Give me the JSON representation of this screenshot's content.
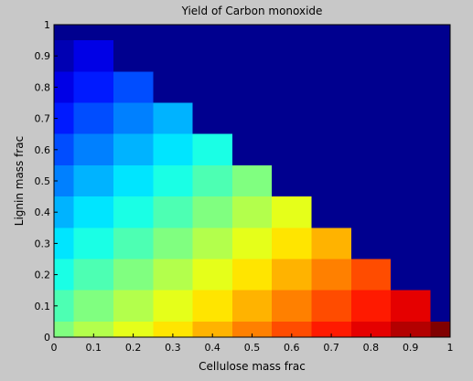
{
  "chart_data": {
    "type": "heatmap",
    "title": "Yield of Carbon monoxide",
    "xlabel": "Cellulose mass frac",
    "ylabel": "Lignin mass frac",
    "xlim": [
      0,
      1
    ],
    "ylim": [
      0,
      1
    ],
    "x_ticks": [
      0,
      0.1,
      0.2,
      0.3,
      0.4,
      0.5,
      0.6,
      0.7,
      0.8,
      0.9,
      1
    ],
    "y_ticks": [
      0,
      0.1,
      0.2,
      0.3,
      0.4,
      0.5,
      0.6,
      0.7,
      0.8,
      0.9,
      1
    ],
    "x_tick_labels": [
      "0",
      "0.1",
      "0.2",
      "0.3",
      "0.4",
      "0.5",
      "0.6",
      "0.7",
      "0.8",
      "0.9",
      "1"
    ],
    "y_tick_labels": [
      "0",
      "0.1",
      "0.2",
      "0.3",
      "0.4",
      "0.5",
      "0.6",
      "0.7",
      "0.8",
      "0.9",
      "1"
    ],
    "colormap": "jet",
    "grid": false,
    "colors": {
      "background": "#c8c8c8",
      "invalid_region": "#00008f"
    },
    "grid_spacing": 0.1,
    "x": [
      0,
      0.1,
      0.2,
      0.3,
      0.4,
      0.5,
      0.6,
      0.7,
      0.8,
      0.9,
      1
    ],
    "y": [
      0,
      0.1,
      0.2,
      0.3,
      0.4,
      0.5,
      0.6,
      0.7,
      0.8,
      0.9,
      1
    ],
    "z": [
      [
        0.5,
        0.55,
        0.6,
        0.65,
        0.7,
        0.75,
        0.8,
        0.85,
        0.9,
        0.95,
        1.0
      ],
      [
        0.45,
        0.5,
        0.55,
        0.6,
        0.65,
        0.7,
        0.75,
        0.8,
        0.85,
        0.9,
        0.0
      ],
      [
        0.4,
        0.45,
        0.5,
        0.55,
        0.6,
        0.65,
        0.7,
        0.75,
        0.8,
        0.0,
        0.0
      ],
      [
        0.35,
        0.4,
        0.45,
        0.5,
        0.55,
        0.6,
        0.65,
        0.7,
        0.0,
        0.0,
        0.0
      ],
      [
        0.3,
        0.35,
        0.4,
        0.45,
        0.5,
        0.55,
        0.6,
        0.0,
        0.0,
        0.0,
        0.0
      ],
      [
        0.25,
        0.3,
        0.35,
        0.4,
        0.45,
        0.5,
        0.0,
        0.0,
        0.0,
        0.0,
        0.0
      ],
      [
        0.2,
        0.25,
        0.3,
        0.35,
        0.4,
        0.0,
        0.0,
        0.0,
        0.0,
        0.0,
        0.0
      ],
      [
        0.15,
        0.2,
        0.25,
        0.3,
        0.0,
        0.0,
        0.0,
        0.0,
        0.0,
        0.0,
        0.0
      ],
      [
        0.1,
        0.15,
        0.2,
        0.0,
        0.0,
        0.0,
        0.0,
        0.0,
        0.0,
        0.0,
        0.0
      ],
      [
        0.05,
        0.1,
        0.0,
        0.0,
        0.0,
        0.0,
        0.0,
        0.0,
        0.0,
        0.0,
        0.0
      ],
      [
        0.0,
        0.0,
        0.0,
        0.0,
        0.0,
        0.0,
        0.0,
        0.0,
        0.0,
        0.0,
        0.0
      ]
    ]
  }
}
